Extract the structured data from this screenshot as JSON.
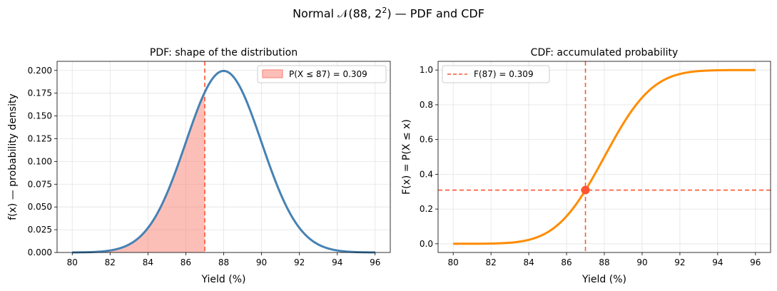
{
  "figure": {
    "title_prefix": "Normal 𝒩(88, 2",
    "title_exponent": "2",
    "title_suffix": ")  —  PDF and CDF"
  },
  "chart_data": [
    {
      "type": "line",
      "title": "PDF: shape of the distribution",
      "xlabel": "Yield (%)",
      "ylabel": "f(x)  — probability density",
      "xlim": [
        79.2,
        96.8
      ],
      "ylim": [
        0,
        0.21
      ],
      "xticks": [
        "80",
        "82",
        "84",
        "86",
        "88",
        "90",
        "92",
        "94",
        "96"
      ],
      "yticks": [
        "0.000",
        "0.025",
        "0.050",
        "0.075",
        "0.100",
        "0.125",
        "0.150",
        "0.175",
        "0.200"
      ],
      "grid": true,
      "legend_position": "top-right",
      "distribution": {
        "family": "normal",
        "mean": 88,
        "sd": 2
      },
      "x_range": [
        80,
        96
      ],
      "series": [
        {
          "name": "",
          "color": "#4682b4",
          "kind": "pdf-curve"
        },
        {
          "name": "P(X ≤ 87) = 0.309",
          "color": "#fa8072",
          "kind": "shaded-area",
          "x_max": 87
        }
      ],
      "vline": {
        "x": 87,
        "color": "#ff5533",
        "style": "dashed"
      },
      "lines": [
        {
          "x": 80,
          "y": 0.0001
        },
        {
          "x": 81,
          "y": 0.0004
        },
        {
          "x": 82,
          "y": 0.0022
        },
        {
          "x": 83,
          "y": 0.0088
        },
        {
          "x": 84,
          "y": 0.027
        },
        {
          "x": 85,
          "y": 0.0648
        },
        {
          "x": 86,
          "y": 0.121
        },
        {
          "x": 87,
          "y": 0.176
        },
        {
          "x": 88,
          "y": 0.1995
        },
        {
          "x": 89,
          "y": 0.176
        },
        {
          "x": 90,
          "y": 0.121
        },
        {
          "x": 91,
          "y": 0.0648
        },
        {
          "x": 92,
          "y": 0.027
        },
        {
          "x": 93,
          "y": 0.0088
        },
        {
          "x": 94,
          "y": 0.0022
        },
        {
          "x": 95,
          "y": 0.0004
        },
        {
          "x": 96,
          "y": 0.0001
        }
      ]
    },
    {
      "type": "line",
      "title": "CDF: accumulated probability",
      "xlabel": "Yield (%)",
      "ylabel": "F(x) = P(X ≤ x)",
      "xlim": [
        79.2,
        96.8
      ],
      "ylim": [
        -0.05,
        1.05
      ],
      "xticks": [
        "80",
        "82",
        "84",
        "86",
        "88",
        "90",
        "92",
        "94",
        "96"
      ],
      "yticks": [
        "0.0",
        "0.2",
        "0.4",
        "0.6",
        "0.8",
        "1.0"
      ],
      "grid": true,
      "legend_position": "top-left",
      "distribution": {
        "family": "normal",
        "mean": 88,
        "sd": 2
      },
      "x_range": [
        80,
        96
      ],
      "series": [
        {
          "name": "",
          "color": "#ff8c00",
          "kind": "cdf-curve"
        },
        {
          "name": "F(87) = 0.309",
          "color": "#ff5533",
          "kind": "dashed-crosshair"
        }
      ],
      "marker": {
        "x": 87,
        "y": 0.309,
        "color": "#ff5533"
      },
      "lines": [
        {
          "x": 80,
          "y": 0.0
        },
        {
          "x": 82,
          "y": 0.0013
        },
        {
          "x": 84,
          "y": 0.0228
        },
        {
          "x": 85,
          "y": 0.0668
        },
        {
          "x": 86,
          "y": 0.1587
        },
        {
          "x": 87,
          "y": 0.3085
        },
        {
          "x": 88,
          "y": 0.5
        },
        {
          "x": 89,
          "y": 0.6915
        },
        {
          "x": 90,
          "y": 0.8413
        },
        {
          "x": 91,
          "y": 0.9332
        },
        {
          "x": 92,
          "y": 0.9772
        },
        {
          "x": 94,
          "y": 0.9987
        },
        {
          "x": 96,
          "y": 1.0
        }
      ]
    }
  ]
}
